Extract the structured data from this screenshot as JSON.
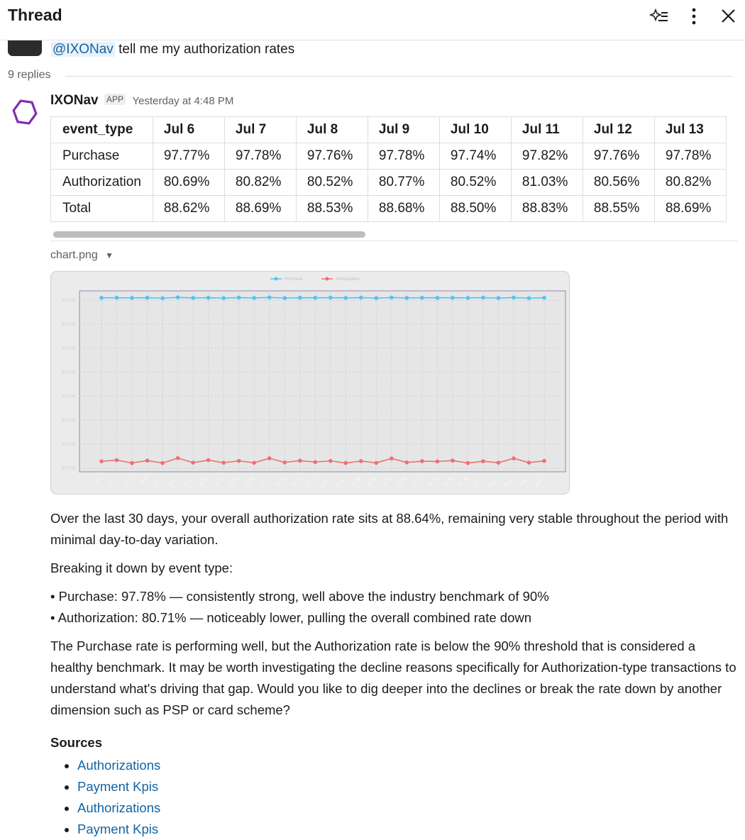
{
  "header": {
    "title": "Thread"
  },
  "parent": {
    "mention": "@IXONav",
    "text": "tell me my authorization rates"
  },
  "replies": "9 replies",
  "message": {
    "author": "IXONav",
    "badge": "APP",
    "time": "Yesterday at 4:48 PM",
    "table": {
      "columns": [
        "event_type",
        "Jul 6",
        "Jul 7",
        "Jul 8",
        "Jul 9",
        "Jul 10",
        "Jul 11",
        "Jul 12",
        "Jul 13"
      ],
      "rows": [
        [
          "Purchase",
          "97.77%",
          "97.78%",
          "97.76%",
          "97.78%",
          "97.74%",
          "97.82%",
          "97.76%",
          "97.78%"
        ],
        [
          "Authorization",
          "80.69%",
          "80.82%",
          "80.52%",
          "80.77%",
          "80.52%",
          "81.03%",
          "80.56%",
          "80.82%"
        ],
        [
          "Total",
          "88.62%",
          "88.69%",
          "88.53%",
          "88.68%",
          "88.50%",
          "88.83%",
          "88.55%",
          "88.69%"
        ]
      ]
    },
    "attachment": "chart.png",
    "paragraphs": [
      "Over the last 30 days, your overall authorization rate sits at 88.64%, remaining very stable throughout the period with minimal day-to-day variation.",
      "Breaking it down by event type:"
    ],
    "bullets": [
      "• Purchase: 97.78% — consistently strong, well above the industry benchmark of 90%",
      "• Authorization: 80.71% — noticeably lower, pulling the overall combined rate down"
    ],
    "closing": "The Purchase rate is performing well, but the Authorization rate is below the 90% threshold that is considered a healthy benchmark. It may be worth investigating the decline reasons specifically for Authorization-type transactions to understand what's driving that gap. Would you like to dig deeper into the declines or break the rate down by another dimension such as PSP or card scheme?",
    "sources_title": "Sources",
    "sources": [
      "Authorizations",
      "Payment Kpis",
      "Authorizations",
      "Payment Kpis"
    ]
  },
  "chart_data": {
    "type": "line",
    "categories": [
      "Jul 6",
      "Jul 7",
      "Jul 8",
      "Jul 9",
      "Jul 10",
      "Jul 11",
      "Jul 12",
      "Jul 13",
      "Jul 14",
      "Jul 15",
      "Jul 16",
      "Jul 17",
      "Jul 18",
      "Jul 19",
      "Jul 20",
      "Jul 21",
      "Jul 22",
      "Jul 23",
      "Jul 24",
      "Jul 25",
      "Jul 26",
      "Jul 27",
      "Jul 28",
      "Jul 29",
      "Jul 30",
      "Jul 31",
      "Aug 1",
      "Aug 2",
      "Aug 3",
      "Aug 4"
    ],
    "series": [
      {
        "name": "Purchase",
        "color": "#4fc3f7",
        "values": [
          97.77,
          97.78,
          97.76,
          97.78,
          97.74,
          97.82,
          97.76,
          97.78,
          97.75,
          97.79,
          97.76,
          97.81,
          97.75,
          97.78,
          97.77,
          97.79,
          97.76,
          97.79,
          97.75,
          97.8,
          97.76,
          97.78,
          97.77,
          97.78,
          97.76,
          97.79,
          97.75,
          97.8,
          97.74,
          97.78
        ]
      },
      {
        "name": "Authorization",
        "color": "#ef7070",
        "values": [
          80.69,
          80.82,
          80.52,
          80.77,
          80.52,
          81.03,
          80.56,
          80.82,
          80.55,
          80.74,
          80.54,
          81.01,
          80.58,
          80.76,
          80.62,
          80.74,
          80.52,
          80.72,
          80.53,
          80.99,
          80.58,
          80.71,
          80.68,
          80.77,
          80.52,
          80.7,
          80.55,
          81.0,
          80.56,
          80.74
        ]
      }
    ],
    "ylim": [
      79.6,
      98.5
    ],
    "yticks": [
      {
        "value": 80,
        "label": "80.00%"
      },
      {
        "value": 82.5,
        "label": "82.50%"
      },
      {
        "value": 85,
        "label": "85.00%"
      },
      {
        "value": 87.5,
        "label": "87.50%"
      },
      {
        "value": 90,
        "label": "90.00%"
      },
      {
        "value": 92.5,
        "label": "92.50%"
      },
      {
        "value": 95,
        "label": "95.00%"
      },
      {
        "value": 97.5,
        "label": "97.50%"
      }
    ],
    "grid": true
  }
}
